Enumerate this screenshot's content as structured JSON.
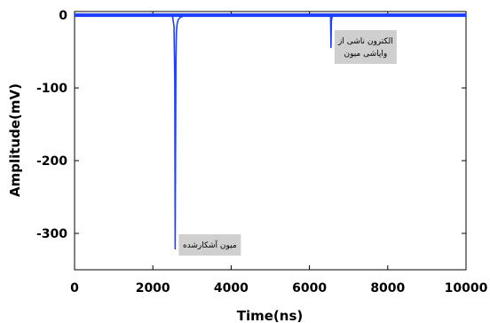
{
  "chart_data": {
    "type": "line",
    "xlabel": "Time(ns)",
    "ylabel": "Amplitude(mV)",
    "xlim": [
      0,
      10000
    ],
    "ylim": [
      -350,
      5
    ],
    "x_ticks": [
      "0",
      "2000",
      "4000",
      "6000",
      "8000",
      "10000"
    ],
    "y_ticks": [
      "0",
      "-100",
      "-200",
      "-300"
    ],
    "grid": false,
    "series": [
      {
        "color": "#1f3fff",
        "x": [
          0,
          2400,
          2500,
          2540,
          2560,
          2570,
          2580,
          2590,
          2600,
          2620,
          2650,
          2700,
          2800,
          6500,
          6540,
          6550,
          6560,
          6580,
          6620,
          10000
        ],
        "y": [
          0,
          0,
          -1,
          -15,
          -90,
          -322,
          -180,
          -60,
          -25,
          -12,
          -6,
          -3,
          -1,
          0,
          -2,
          -45,
          -8,
          -2,
          0,
          0
        ]
      }
    ],
    "annotations": [
      {
        "x": 6550,
        "y": -45,
        "lines": [
          "الکترون ناشی از",
          "واپاشی میون"
        ]
      },
      {
        "x": 2570,
        "y": -322,
        "lines": [
          "میون آشکارشده"
        ]
      }
    ]
  }
}
